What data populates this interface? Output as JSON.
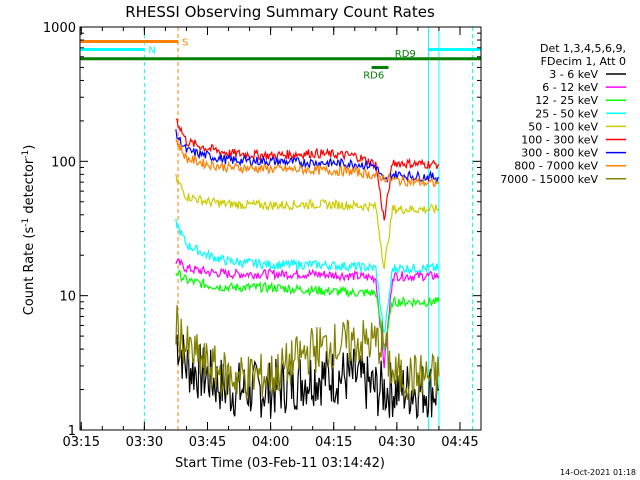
{
  "chart_data": {
    "type": "line",
    "title": "RHESSI Observing Summary Count Rates",
    "xlabel": "Start Time (03-Feb-11 03:14:42)",
    "ylabel_main": "Count Rate (s",
    "ylabel_sup1": "-1",
    "ylabel_mid": " detector",
    "ylabel_sup2": "-1",
    "ylabel_end": ")",
    "y_scale": "log",
    "ylim": [
      1,
      1000
    ],
    "xlim": [
      "03:14:42",
      "04:50:00"
    ],
    "x_ticks": [
      "03:15",
      "03:30",
      "03:45",
      "04:00",
      "04:15",
      "04:30",
      "04:45"
    ],
    "y_ticks": [
      "1",
      "10",
      "100",
      "1000"
    ],
    "timestamp": "14-Oct-2021 01:18",
    "legend_header": [
      "Det 1,3,4,5,6,9,",
      "FDecim 1, Att 0"
    ],
    "series": [
      {
        "name": "3 - 6 keV",
        "color": "#000000",
        "x": [
          "03:37:30",
          "03:40",
          "03:45",
          "03:50",
          "04:00",
          "04:10",
          "04:20",
          "04:25",
          "04:30",
          "04:35",
          "04:40"
        ],
        "values": [
          5,
          3,
          2.5,
          2,
          2,
          2.5,
          2.5,
          2,
          2,
          2,
          2
        ]
      },
      {
        "name": "6 - 12 keV",
        "color": "#ff00ff",
        "x": [
          "03:37:30",
          "03:40",
          "03:45",
          "03:50",
          "04:00",
          "04:10",
          "04:20",
          "04:25",
          "04:27",
          "04:29",
          "04:33",
          "04:40"
        ],
        "values": [
          18,
          16,
          15,
          14.5,
          14.5,
          14.5,
          14,
          13.5,
          3,
          14,
          14,
          14
        ]
      },
      {
        "name": "12 - 25 keV",
        "color": "#00ff00",
        "x": [
          "03:37:30",
          "03:40",
          "03:45",
          "03:50",
          "04:00",
          "04:10",
          "04:20",
          "04:25",
          "04:27",
          "04:29",
          "04:33",
          "04:40"
        ],
        "values": [
          15,
          13,
          12,
          11.5,
          11.5,
          11,
          10.5,
          10.5,
          4,
          9,
          9,
          9
        ]
      },
      {
        "name": "25 - 50 keV",
        "color": "#00ffff",
        "x": [
          "03:37:30",
          "03:40",
          "03:45",
          "03:50",
          "04:00",
          "04:10",
          "04:20",
          "04:25",
          "04:27",
          "04:29",
          "04:33",
          "04:40"
        ],
        "values": [
          35,
          24,
          20,
          18,
          17,
          17,
          16.5,
          16,
          5,
          16,
          16,
          16
        ]
      },
      {
        "name": "50 - 100 keV",
        "color": "#cccc00",
        "x": [
          "03:37:30",
          "03:40",
          "03:45",
          "03:50",
          "04:00",
          "04:10",
          "04:20",
          "04:25",
          "04:27",
          "04:29",
          "04:33",
          "04:40"
        ],
        "values": [
          75,
          55,
          50,
          48,
          47,
          48,
          47,
          46,
          16,
          44,
          44,
          44
        ]
      },
      {
        "name": "100 - 300 keV",
        "color": "#ff0000",
        "x": [
          "03:37:30",
          "03:40",
          "03:45",
          "03:50",
          "04:00",
          "04:10",
          "04:20",
          "04:25",
          "04:27",
          "04:29",
          "04:33",
          "04:40"
        ],
        "values": [
          210,
          140,
          125,
          115,
          110,
          115,
          110,
          95,
          36,
          98,
          96,
          95
        ]
      },
      {
        "name": "300 - 800 keV",
        "color": "#0000ff",
        "x": [
          "03:37:30",
          "03:40",
          "03:45",
          "03:50",
          "04:00",
          "04:10",
          "04:20",
          "04:25",
          "04:27",
          "04:29",
          "04:33",
          "04:40"
        ],
        "values": [
          160,
          120,
          110,
          102,
          100,
          98,
          96,
          92,
          70,
          80,
          78,
          76
        ]
      },
      {
        "name": "800 - 7000 keV",
        "color": "#ff8000",
        "x": [
          "03:37:30",
          "03:40",
          "03:45",
          "03:50",
          "04:00",
          "04:10",
          "04:20",
          "04:25",
          "04:30",
          "04:35",
          "04:40"
        ],
        "values": [
          145,
          105,
          95,
          90,
          88,
          86,
          84,
          78,
          72,
          70,
          68
        ]
      },
      {
        "name": "7000 - 15000 keV",
        "color": "#808000",
        "x": [
          "03:37:30",
          "03:40",
          "03:45",
          "03:50",
          "04:00",
          "04:10",
          "04:20",
          "04:25",
          "04:27",
          "04:29",
          "04:33",
          "04:40"
        ],
        "values": [
          6,
          4,
          3,
          2.5,
          2.5,
          4,
          4.5,
          4.5,
          4.5,
          2.5,
          2.5,
          2.5
        ]
      }
    ],
    "flags": [
      {
        "label": "S",
        "color": "#ff8000",
        "x": [
          "03:14:42",
          "03:38:00"
        ],
        "y_level": 780
      },
      {
        "label": "N",
        "color": "#00ffff",
        "x": [
          "03:14:42",
          "03:30:00"
        ],
        "y_level": 680
      },
      {
        "label": "",
        "color": "#00ffff",
        "x": [
          "04:37:30",
          "04:50:00"
        ],
        "y_level": 680
      },
      {
        "label": "RD9",
        "color": "#008000",
        "x": [
          "03:14:42",
          "04:50:00"
        ],
        "y_level": 580
      },
      {
        "label": "RD6",
        "color": "#008000",
        "x": [
          "04:24:00",
          "04:28:00"
        ],
        "y_level": 500
      }
    ],
    "vlines": [
      {
        "x": "03:30:00",
        "color": "#00ffff",
        "style": "dashed"
      },
      {
        "x": "03:38:00",
        "color": "#ff8000",
        "style": "dashed"
      },
      {
        "x": "04:37:30",
        "color": "#00ffff",
        "style": "solid"
      },
      {
        "x": "04:40:00",
        "color": "#00ffff",
        "style": "solid"
      },
      {
        "x": "04:48:00",
        "color": "#00ffff",
        "style": "dashed"
      }
    ]
  }
}
